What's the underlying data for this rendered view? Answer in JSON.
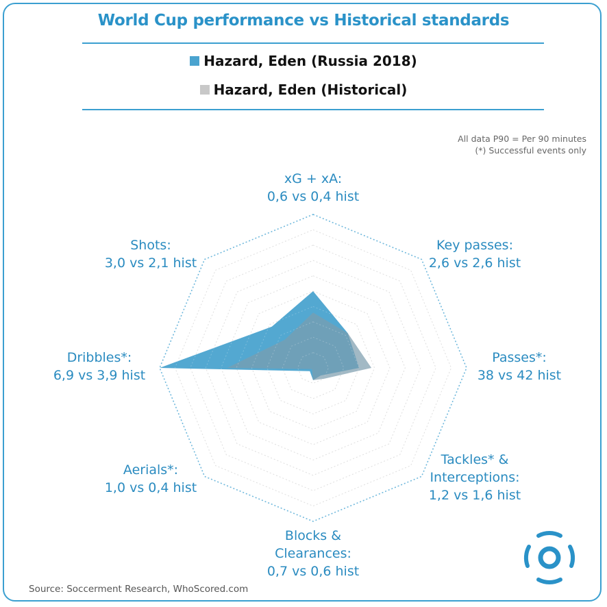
{
  "title": "World Cup performance vs Historical standards",
  "legend": [
    {
      "label": "Hazard, Eden (Russia 2018)",
      "color": "#4aa3cf"
    },
    {
      "label": "Hazard, Eden (Historical)",
      "color": "#c8c8c8"
    }
  ],
  "notes": [
    "All data P90 = Per 90 minutes",
    "(*) Successful events only"
  ],
  "source": "Source: Soccerment Research, WhoScored.com",
  "axis_labels": [
    {
      "line1": "xG + xA:",
      "line2": "",
      "line3": "0,6 vs 0,4 hist"
    },
    {
      "line1": "Key passes:",
      "line2": "",
      "line3": "2,6 vs 2,6 hist"
    },
    {
      "line1": "Passes*:",
      "line2": "",
      "line3": "38 vs 42 hist"
    },
    {
      "line1": "Tackles* &",
      "line2": "Interceptions:",
      "line3": "1,2 vs 1,6 hist"
    },
    {
      "line1": "Blocks &",
      "line2": "Clearances:",
      "line3": "0,7 vs 0,6 hist"
    },
    {
      "line1": "Aerials*:",
      "line2": "",
      "line3": "1,0 vs 0,4 hist"
    },
    {
      "line1": "Dribbles*:",
      "line2": "",
      "line3": "6,9 vs 3,9 hist"
    },
    {
      "line1": "Shots:",
      "line2": "",
      "line3": "3,0 vs 2,1 hist"
    }
  ],
  "chart_data": {
    "type": "radar",
    "categories": [
      "xG + xA",
      "Key passes",
      "Passes*",
      "Tackles* & Interceptions",
      "Blocks & Clearances",
      "Aerials*",
      "Dribbles*",
      "Shots"
    ],
    "scale_max": 1.0,
    "series": [
      {
        "name": "Hazard, Eden (Russia 2018)",
        "values": [
          0.5,
          0.32,
          0.3,
          0.07,
          0.08,
          0.03,
          1.0,
          0.38
        ],
        "color": "#4aa3cf"
      },
      {
        "name": "Hazard, Eden (Historical)",
        "values": [
          0.36,
          0.32,
          0.38,
          0.1,
          0.08,
          0.01,
          0.56,
          0.26
        ],
        "color": "#c8c8c8"
      }
    ],
    "grid_levels": 10,
    "grid": true
  }
}
